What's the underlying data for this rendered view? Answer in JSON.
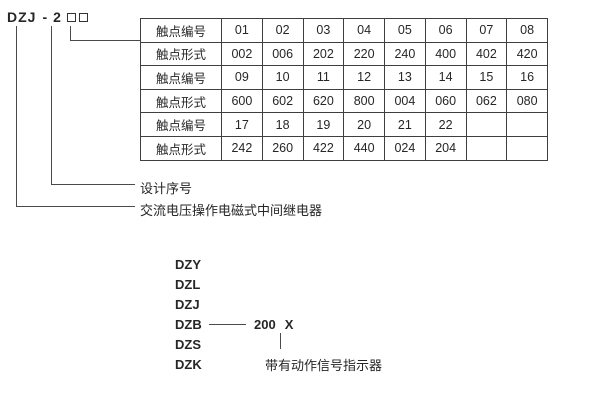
{
  "model_code": {
    "prefix": "DZJ",
    "separator": "-",
    "serial": "2",
    "placeholder_boxes": 2
  },
  "table": {
    "rows": [
      {
        "label": "触点编号",
        "cells": [
          "01",
          "02",
          "03",
          "04",
          "05",
          "06",
          "07",
          "08"
        ]
      },
      {
        "label": "触点形式",
        "cells": [
          "002",
          "006",
          "202",
          "220",
          "240",
          "400",
          "402",
          "420"
        ]
      },
      {
        "label": "触点编号",
        "cells": [
          "09",
          "10",
          "11",
          "12",
          "13",
          "14",
          "15",
          "16"
        ]
      },
      {
        "label": "触点形式",
        "cells": [
          "600",
          "602",
          "620",
          "800",
          "004",
          "060",
          "062",
          "080"
        ]
      },
      {
        "label": "触点编号",
        "cells": [
          "17",
          "18",
          "19",
          "20",
          "21",
          "22",
          "",
          ""
        ]
      },
      {
        "label": "触点形式",
        "cells": [
          "242",
          "260",
          "422",
          "440",
          "024",
          "204",
          "",
          ""
        ]
      }
    ]
  },
  "callouts": {
    "design_serial": "设计序号",
    "relay_type": "交流电压操作电磁式中间继电器"
  },
  "series_list": {
    "items": [
      "DZY",
      "DZL",
      "DZJ",
      "DZB",
      "DZS",
      "DZK"
    ],
    "dzb_number": "200",
    "dzb_suffix": "X",
    "indicator_note": "带有动作信号指示器"
  },
  "colors": {
    "text": "#262626",
    "line": "#4a4a4a",
    "table_border": "#3f3f3f",
    "background": "#ffffff"
  }
}
